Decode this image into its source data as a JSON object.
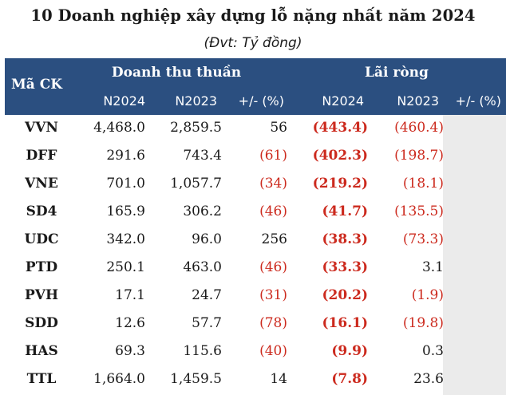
{
  "title": "10 Doanh nghiệp xây dựng lỗ nặng nhất năm 2024",
  "subtitle": "(Đvt: Tỷ đồng)",
  "header": {
    "code_label": "Mã CK",
    "group_revenue": "Doanh thu thuần",
    "group_profit": "Lãi ròng",
    "sub": [
      "N2024",
      "N2023",
      "+/- (%)",
      "N2024",
      "N2023",
      "+/- (%)"
    ]
  },
  "colors": {
    "header_bg": "#2b4f80",
    "negative": "#cc2a1e",
    "gray_column": "#ebebeb"
  },
  "rows": [
    {
      "code": "VVN",
      "rev2024": "4,468.0",
      "rev2023": "2,859.5",
      "rev_chg": "56",
      "rev_chg_neg": false,
      "np2024": "(443.4)",
      "np2023": "(460.4)",
      "np2023_neg": true
    },
    {
      "code": "DFF",
      "rev2024": "291.6",
      "rev2023": "743.4",
      "rev_chg": "(61)",
      "rev_chg_neg": true,
      "np2024": "(402.3)",
      "np2023": "(198.7)",
      "np2023_neg": true
    },
    {
      "code": "VNE",
      "rev2024": "701.0",
      "rev2023": "1,057.7",
      "rev_chg": "(34)",
      "rev_chg_neg": true,
      "np2024": "(219.2)",
      "np2023": "(18.1)",
      "np2023_neg": true
    },
    {
      "code": "SD4",
      "rev2024": "165.9",
      "rev2023": "306.2",
      "rev_chg": "(46)",
      "rev_chg_neg": true,
      "np2024": "(41.7)",
      "np2023": "(135.5)",
      "np2023_neg": true
    },
    {
      "code": "UDC",
      "rev2024": "342.0",
      "rev2023": "96.0",
      "rev_chg": "256",
      "rev_chg_neg": false,
      "np2024": "(38.3)",
      "np2023": "(73.3)",
      "np2023_neg": true
    },
    {
      "code": "PTD",
      "rev2024": "250.1",
      "rev2023": "463.0",
      "rev_chg": "(46)",
      "rev_chg_neg": true,
      "np2024": "(33.3)",
      "np2023": "3.1",
      "np2023_neg": false
    },
    {
      "code": "PVH",
      "rev2024": "17.1",
      "rev2023": "24.7",
      "rev_chg": "(31)",
      "rev_chg_neg": true,
      "np2024": "(20.2)",
      "np2023": "(1.9)",
      "np2023_neg": true
    },
    {
      "code": "SDD",
      "rev2024": "12.6",
      "rev2023": "57.7",
      "rev_chg": "(78)",
      "rev_chg_neg": true,
      "np2024": "(16.1)",
      "np2023": "(19.8)",
      "np2023_neg": true
    },
    {
      "code": "HAS",
      "rev2024": "69.3",
      "rev2023": "115.6",
      "rev_chg": "(40)",
      "rev_chg_neg": true,
      "np2024": "(9.9)",
      "np2023": "0.3",
      "np2023_neg": false
    },
    {
      "code": "TTL",
      "rev2024": "1,664.0",
      "rev2023": "1,459.5",
      "rev_chg": "14",
      "rev_chg_neg": false,
      "np2024": "(7.8)",
      "np2023": "23.6",
      "np2023_neg": false
    }
  ]
}
